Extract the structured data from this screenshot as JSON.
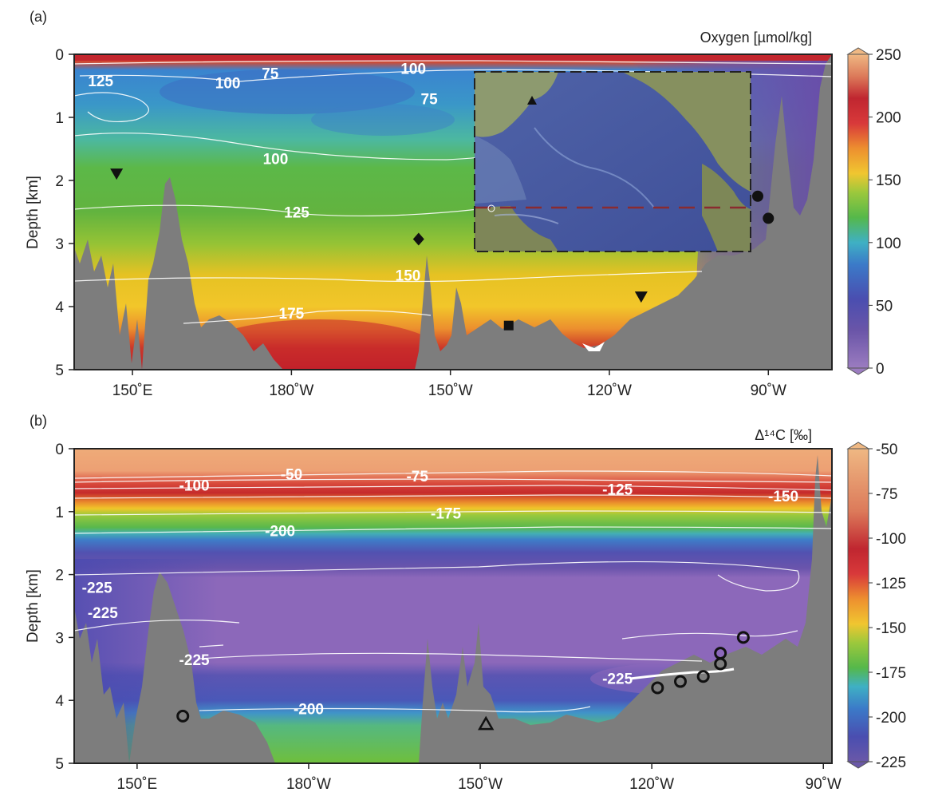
{
  "chart_data": [
    {
      "type": "heatmap",
      "panel_label": "(a)",
      "variable": "Oxygen [µmol/kg]",
      "ylabel": "Depth [km]",
      "ylim": [
        0,
        5
      ],
      "yticks": [
        "0",
        "1",
        "2",
        "3",
        "4",
        "5"
      ],
      "xticks": [
        "150˚E",
        "180˚W",
        "150˚W",
        "120˚W",
        "90˚W"
      ],
      "xtick_lon": [
        150,
        180,
        210,
        240,
        270
      ],
      "xlim_lon": [
        139,
        282
      ],
      "colorbar": {
        "ticks": [
          "250",
          "200",
          "150",
          "100",
          "50",
          "0"
        ],
        "range": [
          0,
          250
        ]
      },
      "contour_labels": [
        {
          "text": "125",
          "lon": 144,
          "depth": 0.42
        },
        {
          "text": "100",
          "lon": 168,
          "depth": 0.45
        },
        {
          "text": "75",
          "lon": 176,
          "depth": 0.3
        },
        {
          "text": "100",
          "lon": 203,
          "depth": 0.22
        },
        {
          "text": "75",
          "lon": 206,
          "depth": 0.7
        },
        {
          "text": "100",
          "lon": 177,
          "depth": 1.65
        },
        {
          "text": "125",
          "lon": 181,
          "depth": 2.5
        },
        {
          "text": "150",
          "lon": 202,
          "depth": 3.5
        },
        {
          "text": "175",
          "lon": 180,
          "depth": 4.1
        }
      ],
      "markers": [
        {
          "shape": "triangle-down",
          "lon": 147,
          "depth": 1.9
        },
        {
          "shape": "diamond",
          "lon": 204,
          "depth": 2.93
        },
        {
          "shape": "square",
          "lon": 221,
          "depth": 4.3
        },
        {
          "shape": "triangle-down",
          "lon": 246,
          "depth": 3.85
        },
        {
          "shape": "circle",
          "lon": 268,
          "depth": 2.25
        },
        {
          "shape": "circle",
          "lon": 270,
          "depth": 2.6
        }
      ],
      "inset_map": {
        "description": "Pacific Ocean bathymetry map with section line at ~5°S"
      }
    },
    {
      "type": "heatmap",
      "panel_label": "(b)",
      "variable": "Δ¹⁴C [‰]",
      "ylabel": "Depth [km]",
      "ylim": [
        0,
        5
      ],
      "yticks": [
        "0",
        "1",
        "2",
        "3",
        "4",
        "5"
      ],
      "xticks": [
        "150˚E",
        "180˚W",
        "150˚W",
        "120˚W",
        "90˚W"
      ],
      "xtick_lon": [
        150,
        180,
        210,
        240,
        270
      ],
      "xlim_lon": [
        139,
        271.5
      ],
      "colorbar": {
        "ticks": [
          "-50",
          "-75",
          "-100",
          "-125",
          "-150",
          "-175",
          "-200",
          "-225"
        ],
        "range": [
          -225,
          -50
        ]
      },
      "contour_labels": [
        {
          "text": "-50",
          "lon": 177,
          "depth": 0.4
        },
        {
          "text": "-75",
          "lon": 199,
          "depth": 0.43
        },
        {
          "text": "-100",
          "lon": 160,
          "depth": 0.58
        },
        {
          "text": "-125",
          "lon": 234,
          "depth": 0.64
        },
        {
          "text": "-150",
          "lon": 263,
          "depth": 0.75
        },
        {
          "text": "-175",
          "lon": 204,
          "depth": 1.02
        },
        {
          "text": "-200",
          "lon": 175,
          "depth": 1.3
        },
        {
          "text": "-225",
          "lon": 143,
          "depth": 2.2
        },
        {
          "text": "-225",
          "lon": 144,
          "depth": 2.6
        },
        {
          "text": "-225",
          "lon": 160,
          "depth": 3.35
        },
        {
          "text": "-225",
          "lon": 234,
          "depth": 3.65
        },
        {
          "text": "-200",
          "lon": 180,
          "depth": 4.13
        }
      ],
      "markers": [
        {
          "shape": "circle-open",
          "lon": 158,
          "depth": 4.25
        },
        {
          "shape": "triangle-open",
          "lon": 211,
          "depth": 4.38
        },
        {
          "shape": "circle-open",
          "lon": 241,
          "depth": 3.8
        },
        {
          "shape": "circle-open",
          "lon": 245,
          "depth": 3.7
        },
        {
          "shape": "circle-open",
          "lon": 249,
          "depth": 3.62
        },
        {
          "shape": "circle-open",
          "lon": 252,
          "depth": 3.25
        },
        {
          "shape": "circle-open",
          "lon": 252,
          "depth": 3.42
        },
        {
          "shape": "circle-open",
          "lon": 256,
          "depth": 3.0
        }
      ]
    }
  ]
}
